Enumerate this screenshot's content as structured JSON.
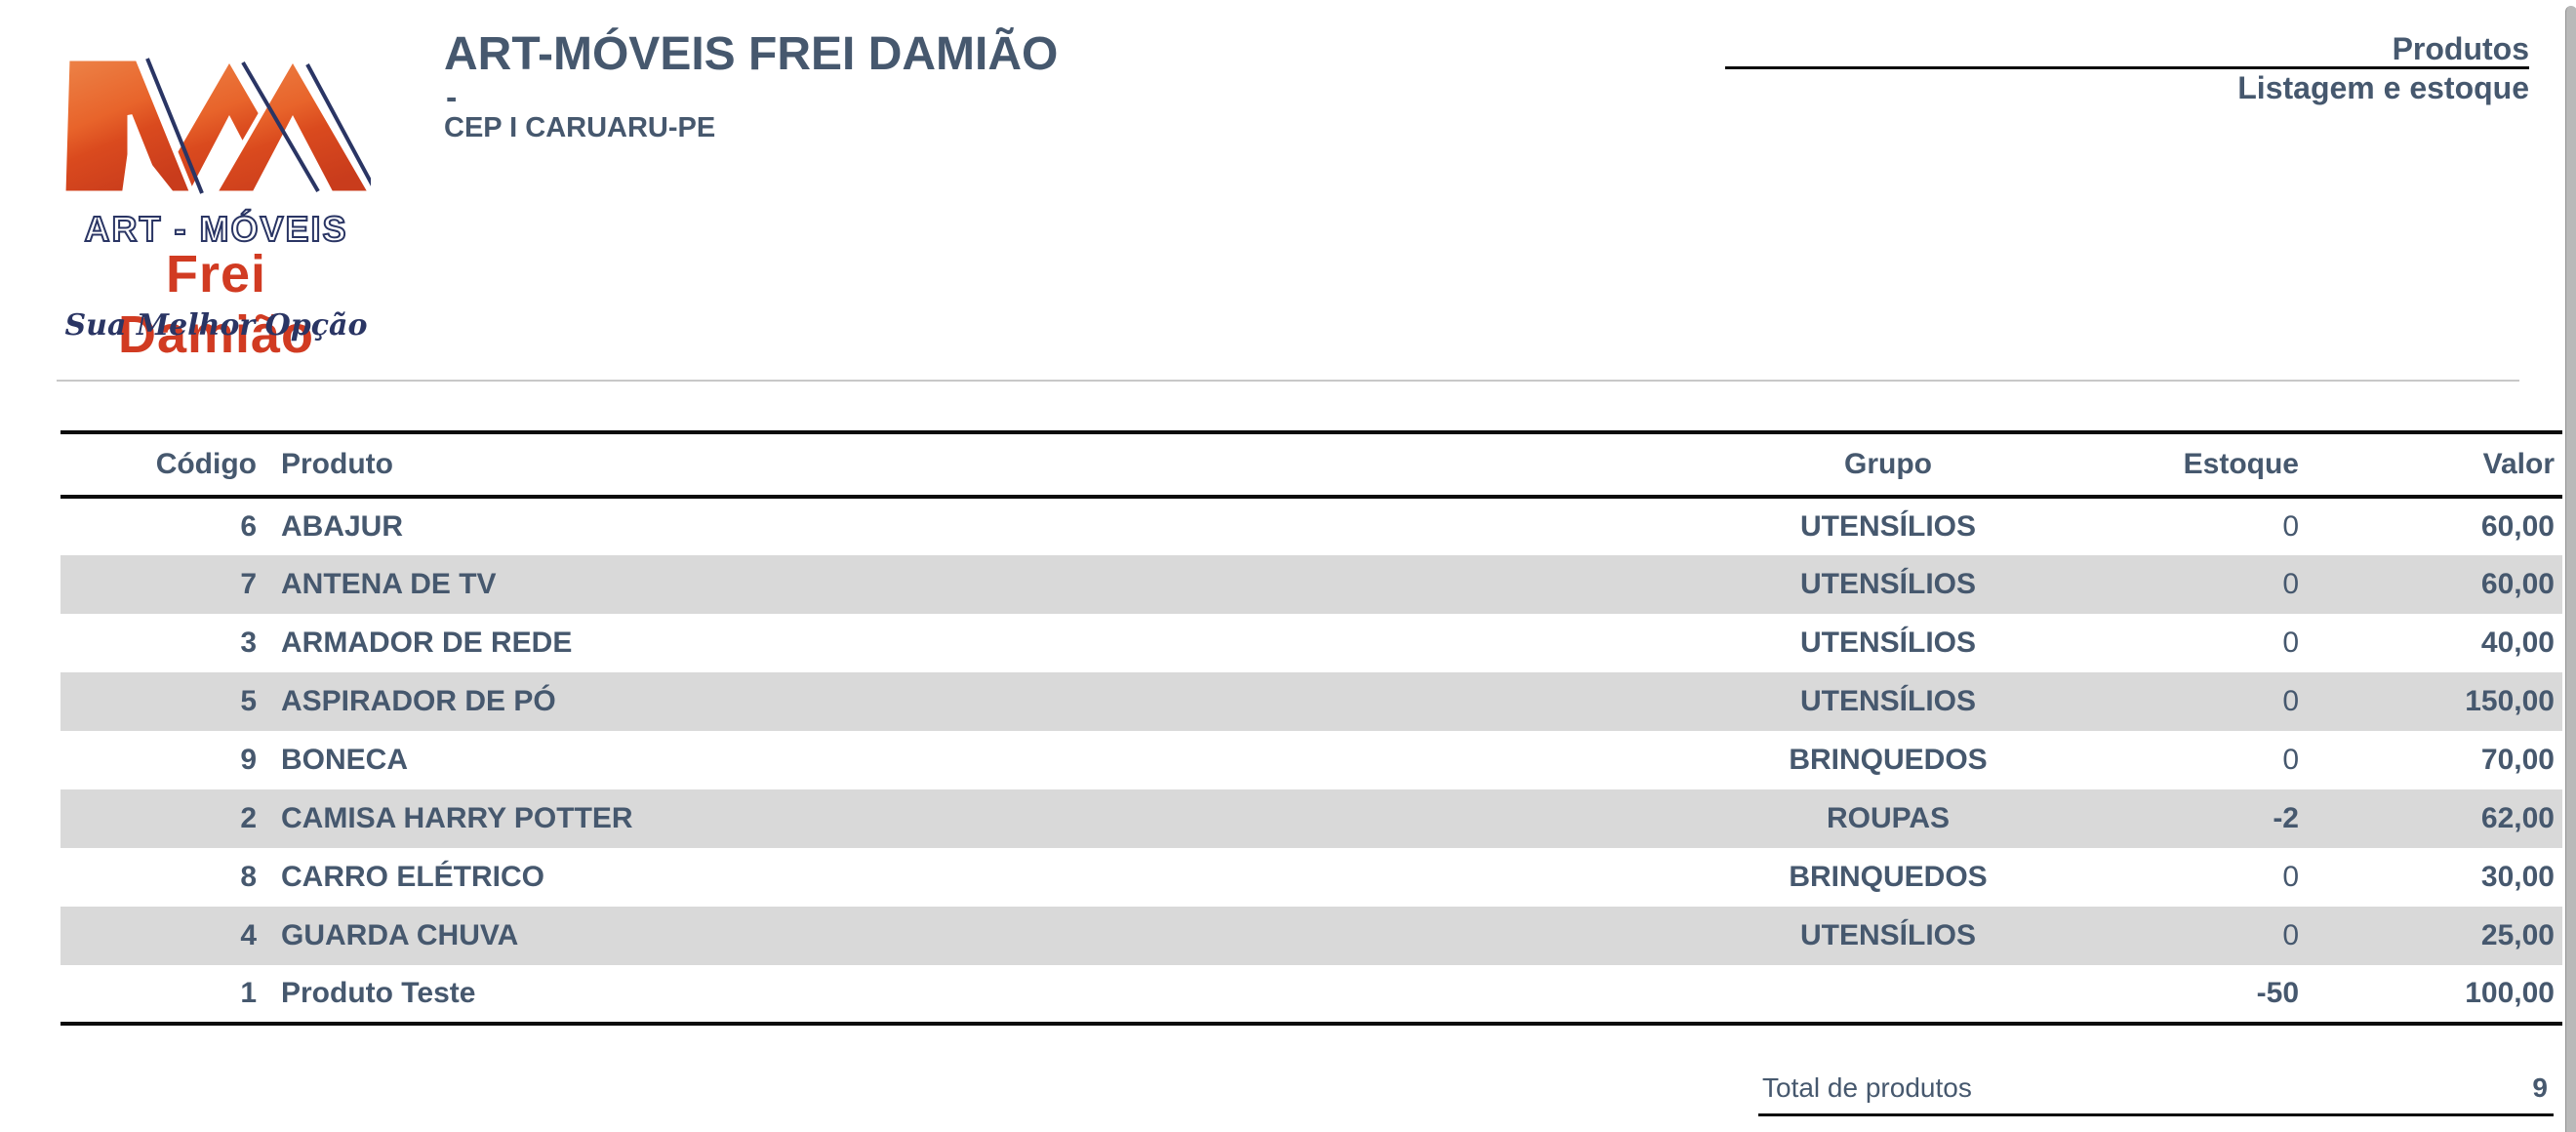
{
  "theme": {
    "ink": "#46586e",
    "navy": "#2a3564",
    "red": "#d13b22",
    "orange_dark": "#c93c1c",
    "orange_light": "#ec8045",
    "stripe": "#d9d9d9",
    "rule_black": "#0b0b0b",
    "separator_gray": "#c8c8c8"
  },
  "logo": {
    "monogram": "AM",
    "line1": "ART - MÓVEIS",
    "line2": "Frei Damião",
    "tagline": "Sua Melhor Opção"
  },
  "header": {
    "company_name": "ART-MÓVEIS FREI DAMIÃO",
    "address_line": "-",
    "cep_line": "CEP I CARUARU-PE",
    "report_title": "Produtos",
    "report_subtitle": "Listagem e estoque"
  },
  "table": {
    "columns": [
      "Código",
      "Produto",
      "Grupo",
      "Estoque",
      "Valor"
    ],
    "rows": [
      {
        "codigo": "6",
        "produto": "ABAJUR",
        "grupo": "UTENSÍLIOS",
        "estoque": "0",
        "valor": "60,00"
      },
      {
        "codigo": "7",
        "produto": "ANTENA DE TV",
        "grupo": "UTENSÍLIOS",
        "estoque": "0",
        "valor": "60,00"
      },
      {
        "codigo": "3",
        "produto": "ARMADOR DE REDE",
        "grupo": "UTENSÍLIOS",
        "estoque": "0",
        "valor": "40,00"
      },
      {
        "codigo": "5",
        "produto": "ASPIRADOR DE PÓ",
        "grupo": "UTENSÍLIOS",
        "estoque": "0",
        "valor": "150,00"
      },
      {
        "codigo": "9",
        "produto": "BONECA",
        "grupo": "BRINQUEDOS",
        "estoque": "0",
        "valor": "70,00"
      },
      {
        "codigo": "2",
        "produto": "CAMISA HARRY POTTER",
        "grupo": "ROUPAS",
        "estoque": "-2",
        "valor": "62,00"
      },
      {
        "codigo": "8",
        "produto": "CARRO ELÉTRICO",
        "grupo": "BRINQUEDOS",
        "estoque": "0",
        "valor": "30,00"
      },
      {
        "codigo": "4",
        "produto": "GUARDA CHUVA",
        "grupo": "UTENSÍLIOS",
        "estoque": "0",
        "valor": "25,00"
      },
      {
        "codigo": "1",
        "produto": "Produto Teste",
        "grupo": "",
        "estoque": "-50",
        "valor": "100,00"
      }
    ]
  },
  "summary": {
    "total_label": "Total de produtos",
    "total_value": "9"
  }
}
